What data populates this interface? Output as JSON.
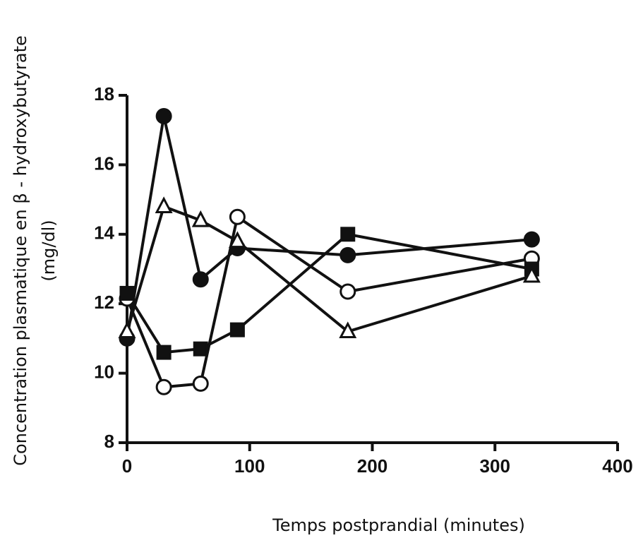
{
  "chart_data": {
    "type": "line",
    "xlabel": "Temps postprandial (minutes)",
    "ylabel": [
      "Concentration plasmatique en β - hydroxybutyrate",
      "(mg/dl)"
    ],
    "xlim": [
      0,
      400
    ],
    "xticks": [
      0,
      100,
      200,
      300,
      400
    ],
    "ylim": [
      8,
      18
    ],
    "yticks": [
      8,
      10,
      12,
      14,
      16,
      18
    ],
    "grid": false,
    "series": [
      {
        "marker": "filled-circle",
        "color": "#111111",
        "x": [
          0,
          30,
          60,
          90,
          180,
          330
        ],
        "values": [
          11.0,
          17.4,
          12.7,
          13.6,
          13.4,
          13.85
        ]
      },
      {
        "marker": "open-circle",
        "color": "#111111",
        "x": [
          0,
          30,
          60,
          90,
          180,
          330
        ],
        "values": [
          12.15,
          9.6,
          9.7,
          14.5,
          12.35,
          13.3
        ]
      },
      {
        "marker": "filled-square",
        "color": "#111111",
        "x": [
          0,
          30,
          60,
          90,
          180,
          330
        ],
        "values": [
          12.3,
          10.6,
          10.7,
          11.25,
          14.0,
          13.0
        ]
      },
      {
        "marker": "open-triangle",
        "color": "#111111",
        "x": [
          0,
          30,
          60,
          90,
          180,
          330
        ],
        "values": [
          11.2,
          14.8,
          14.4,
          13.8,
          11.2,
          12.8
        ]
      }
    ]
  }
}
